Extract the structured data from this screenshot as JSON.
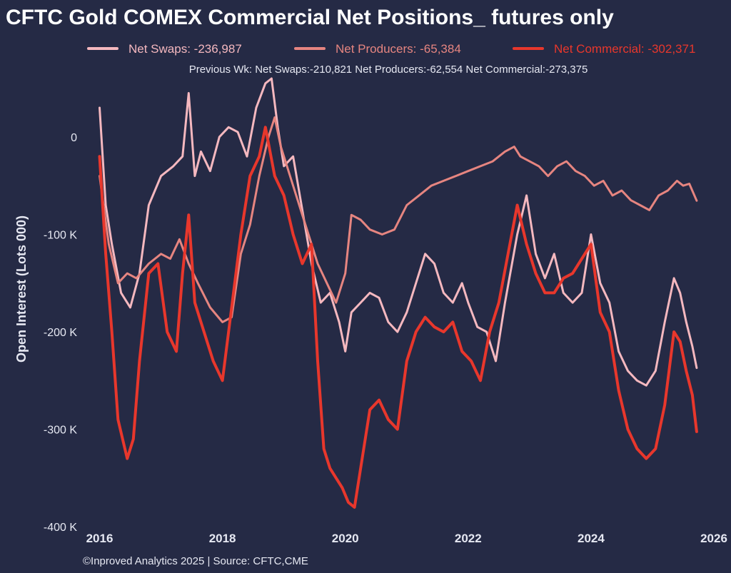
{
  "chart_data": {
    "type": "line",
    "title": "CFTC Gold COMEX Commercial Net Positions_ futures only",
    "subtitle": "Previous Wk: Net Swaps:-210,821  Net Producers:-62,554  Net Commercial:-273,375",
    "xlabel": "",
    "ylabel": "Open Interest (Lots 000)",
    "xlim": [
      2015.75,
      2026.0
    ],
    "ylim": [
      -405000,
      60000
    ],
    "x_ticks": [
      2016,
      2018,
      2020,
      2022,
      2024,
      2026
    ],
    "x_tick_labels": [
      "2016",
      "2018",
      "2020",
      "2022",
      "2024",
      "2026"
    ],
    "y_ticks": [
      0,
      -100000,
      -200000,
      -300000,
      -400000
    ],
    "y_tick_labels": [
      "0",
      "-100 K",
      "-200 K",
      "-300 K",
      "-400 K"
    ],
    "grid": false,
    "legend_position": "top",
    "background": "#252a45",
    "source": "©Inproved Analytics 2025 | Source: CFTC,CME",
    "series": [
      {
        "name": "Net Swaps",
        "legend_value": "-236,987",
        "color": "#f5b8bf",
        "x": [
          2016.0,
          2016.1,
          2016.2,
          2016.35,
          2016.5,
          2016.65,
          2016.8,
          2017.0,
          2017.2,
          2017.35,
          2017.45,
          2017.55,
          2017.65,
          2017.8,
          2017.95,
          2018.1,
          2018.25,
          2018.4,
          2018.55,
          2018.7,
          2018.8,
          2018.9,
          2019.0,
          2019.15,
          2019.3,
          2019.45,
          2019.6,
          2019.75,
          2019.9,
          2020.0,
          2020.1,
          2020.25,
          2020.4,
          2020.55,
          2020.7,
          2020.85,
          2021.0,
          2021.15,
          2021.3,
          2021.45,
          2021.6,
          2021.75,
          2021.9,
          2022.0,
          2022.15,
          2022.3,
          2022.45,
          2022.6,
          2022.8,
          2022.95,
          2023.1,
          2023.25,
          2023.4,
          2023.55,
          2023.7,
          2023.85,
          2024.0,
          2024.15,
          2024.3,
          2024.45,
          2024.6,
          2024.75,
          2024.9,
          2025.05,
          2025.2,
          2025.35,
          2025.45,
          2025.55,
          2025.65,
          2025.72
        ],
        "y": [
          30000,
          -70000,
          -110000,
          -160000,
          -175000,
          -140000,
          -70000,
          -40000,
          -30000,
          -20000,
          45000,
          -40000,
          -15000,
          -35000,
          0,
          10000,
          5000,
          -20000,
          30000,
          55000,
          60000,
          10000,
          -30000,
          -20000,
          -75000,
          -130000,
          -170000,
          -160000,
          -190000,
          -220000,
          -180000,
          -170000,
          -160000,
          -165000,
          -190000,
          -200000,
          -180000,
          -150000,
          -120000,
          -130000,
          -160000,
          -170000,
          -150000,
          -170000,
          -195000,
          -200000,
          -230000,
          -170000,
          -100000,
          -60000,
          -120000,
          -145000,
          -120000,
          -160000,
          -170000,
          -160000,
          -100000,
          -150000,
          -170000,
          -220000,
          -240000,
          -250000,
          -255000,
          -240000,
          -190000,
          -145000,
          -160000,
          -190000,
          -215000,
          -236987
        ]
      },
      {
        "name": "Net Producers",
        "legend_value": "-65,384",
        "color": "#e68580",
        "x": [
          2016.0,
          2016.15,
          2016.3,
          2016.45,
          2016.6,
          2016.8,
          2017.0,
          2017.15,
          2017.3,
          2017.45,
          2017.6,
          2017.8,
          2018.0,
          2018.15,
          2018.3,
          2018.45,
          2018.6,
          2018.75,
          2018.85,
          2018.95,
          2019.1,
          2019.25,
          2019.4,
          2019.55,
          2019.7,
          2019.85,
          2020.0,
          2020.1,
          2020.25,
          2020.4,
          2020.6,
          2020.8,
          2021.0,
          2021.2,
          2021.4,
          2021.6,
          2021.8,
          2022.0,
          2022.2,
          2022.4,
          2022.6,
          2022.75,
          2022.85,
          2023.0,
          2023.15,
          2023.3,
          2023.45,
          2023.6,
          2023.75,
          2023.9,
          2024.05,
          2024.2,
          2024.35,
          2024.5,
          2024.65,
          2024.8,
          2024.95,
          2025.1,
          2025.25,
          2025.4,
          2025.5,
          2025.6,
          2025.72
        ],
        "y": [
          -40000,
          -110000,
          -150000,
          -140000,
          -145000,
          -130000,
          -120000,
          -125000,
          -105000,
          -130000,
          -150000,
          -175000,
          -190000,
          -185000,
          -120000,
          -90000,
          -40000,
          0,
          20000,
          -10000,
          -40000,
          -70000,
          -100000,
          -130000,
          -150000,
          -170000,
          -140000,
          -80000,
          -85000,
          -95000,
          -100000,
          -95000,
          -70000,
          -60000,
          -50000,
          -45000,
          -40000,
          -35000,
          -30000,
          -25000,
          -15000,
          -10000,
          -20000,
          -25000,
          -30000,
          -40000,
          -30000,
          -25000,
          -35000,
          -40000,
          -50000,
          -45000,
          -60000,
          -55000,
          -65000,
          -70000,
          -75000,
          -60000,
          -55000,
          -45000,
          -50000,
          -48000,
          -65384
        ]
      },
      {
        "name": "Net Commercial",
        "legend_value": "-302,371",
        "color": "#e8372c",
        "x": [
          2016.0,
          2016.1,
          2016.2,
          2016.3,
          2016.45,
          2016.55,
          2016.65,
          2016.8,
          2016.95,
          2017.1,
          2017.25,
          2017.35,
          2017.45,
          2017.55,
          2017.7,
          2017.85,
          2018.0,
          2018.1,
          2018.2,
          2018.3,
          2018.45,
          2018.6,
          2018.7,
          2018.85,
          2019.0,
          2019.15,
          2019.3,
          2019.45,
          2019.55,
          2019.65,
          2019.75,
          2019.85,
          2019.95,
          2020.05,
          2020.15,
          2020.25,
          2020.4,
          2020.55,
          2020.7,
          2020.85,
          2021.0,
          2021.15,
          2021.3,
          2021.45,
          2021.6,
          2021.75,
          2021.9,
          2022.05,
          2022.2,
          2022.35,
          2022.5,
          2022.65,
          2022.8,
          2022.95,
          2023.1,
          2023.25,
          2023.4,
          2023.55,
          2023.7,
          2023.85,
          2024.0,
          2024.15,
          2024.3,
          2024.45,
          2024.6,
          2024.75,
          2024.9,
          2025.05,
          2025.2,
          2025.35,
          2025.45,
          2025.55,
          2025.65,
          2025.72
        ],
        "y": [
          -20000,
          -120000,
          -200000,
          -290000,
          -330000,
          -310000,
          -230000,
          -140000,
          -130000,
          -200000,
          -220000,
          -140000,
          -80000,
          -170000,
          -200000,
          -230000,
          -250000,
          -200000,
          -150000,
          -100000,
          -40000,
          -20000,
          10000,
          -40000,
          -60000,
          -100000,
          -130000,
          -110000,
          -230000,
          -320000,
          -340000,
          -350000,
          -360000,
          -375000,
          -380000,
          -340000,
          -280000,
          -270000,
          -290000,
          -300000,
          -230000,
          -200000,
          -185000,
          -195000,
          -200000,
          -190000,
          -220000,
          -230000,
          -250000,
          -200000,
          -170000,
          -120000,
          -70000,
          -110000,
          -140000,
          -160000,
          -160000,
          -145000,
          -140000,
          -125000,
          -110000,
          -180000,
          -200000,
          -260000,
          -300000,
          -320000,
          -330000,
          -320000,
          -275000,
          -200000,
          -210000,
          -240000,
          -265000,
          -302371
        ]
      }
    ]
  }
}
